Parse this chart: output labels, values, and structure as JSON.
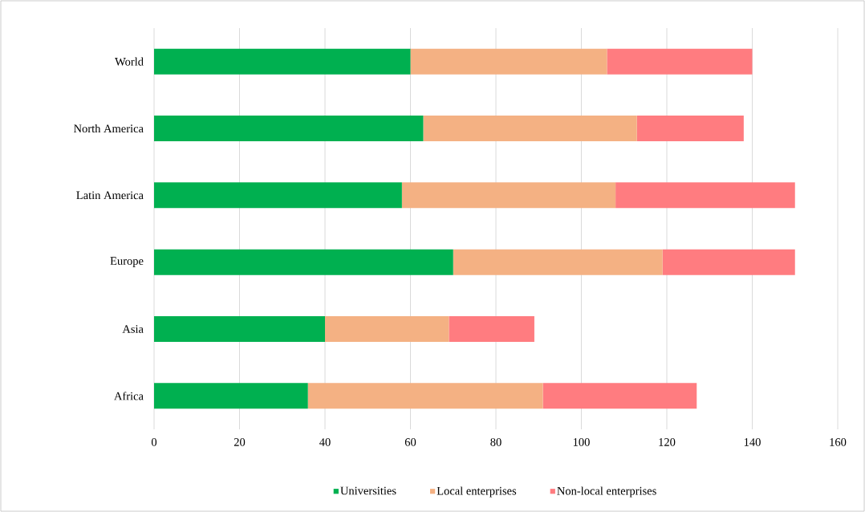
{
  "chart_data": {
    "type": "bar",
    "orientation": "horizontal",
    "stacked": true,
    "categories": [
      "World",
      "North America",
      "Latin America",
      "Europe",
      "Asia",
      "Africa"
    ],
    "series": [
      {
        "name": "Universities",
        "color": "#00b050",
        "values": [
          60,
          63,
          58,
          70,
          40,
          36
        ]
      },
      {
        "name": "Local enterprises",
        "color": "#f4b183",
        "values": [
          46,
          50,
          50,
          49,
          29,
          55
        ]
      },
      {
        "name": "Non-local enterprises",
        "color": "#ff7c80",
        "values": [
          34,
          25,
          42,
          31,
          20,
          36
        ]
      }
    ],
    "xlim": [
      0,
      160
    ],
    "xticks": [
      0,
      20,
      40,
      60,
      80,
      100,
      120,
      140,
      160
    ],
    "grid": "x",
    "legend": "bottom"
  }
}
